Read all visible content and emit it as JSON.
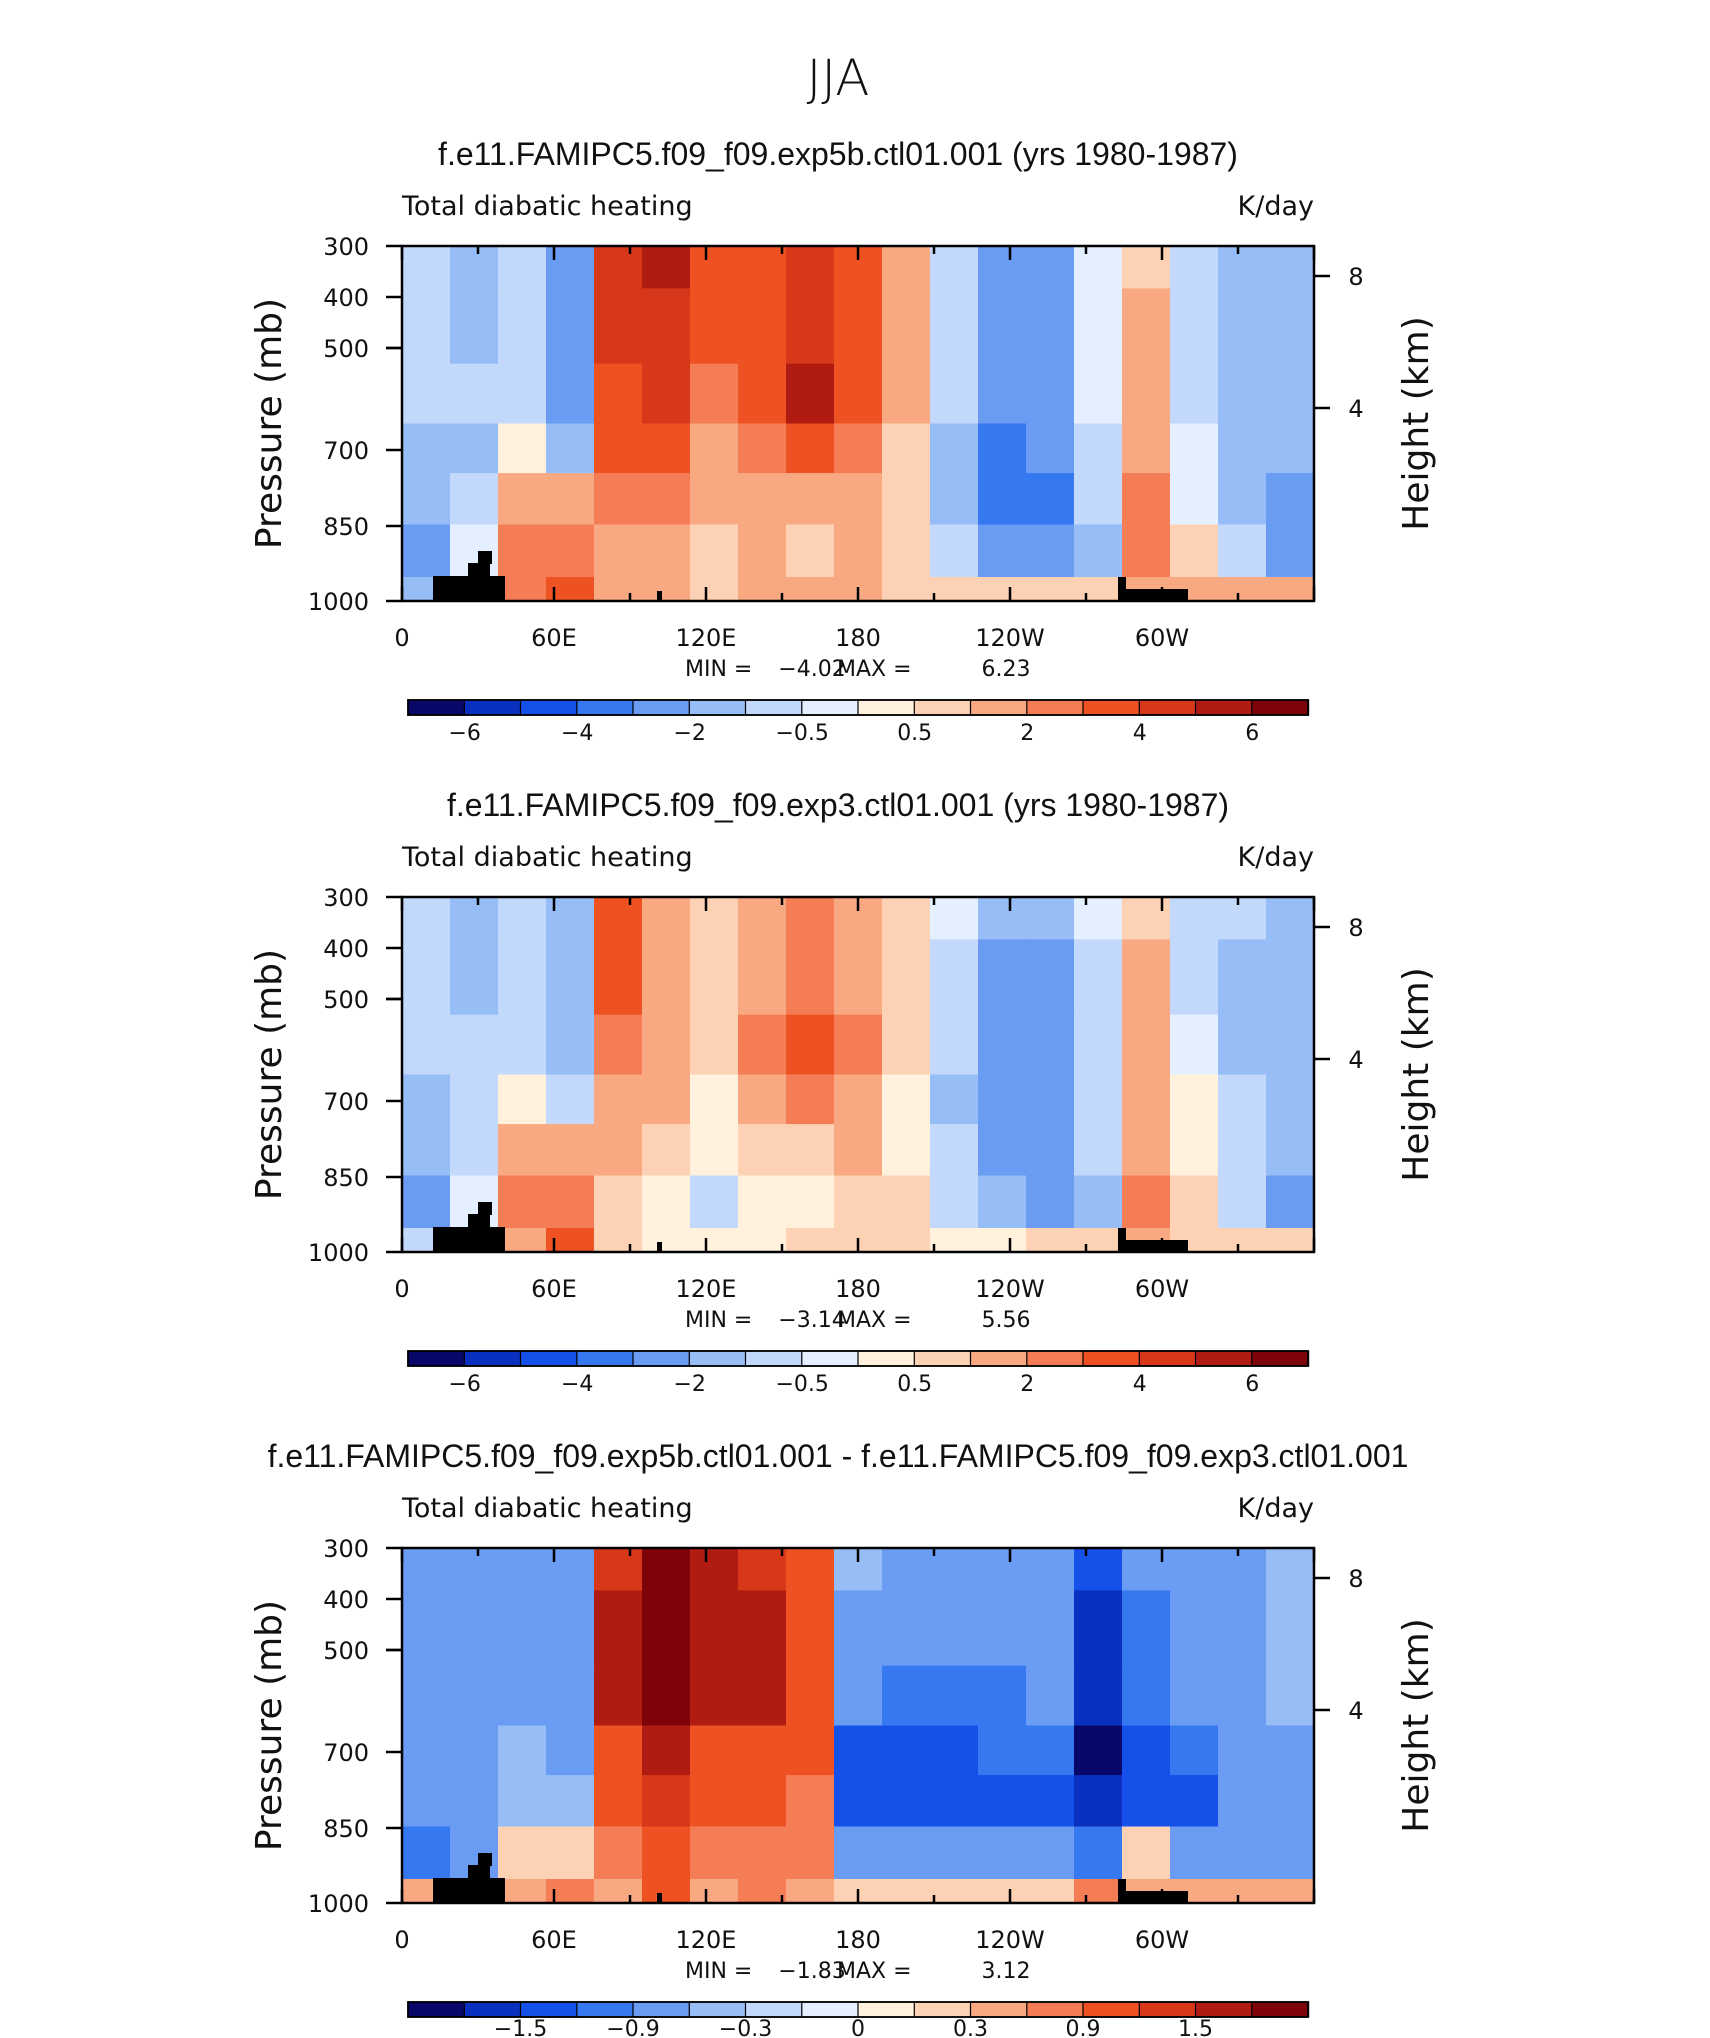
{
  "figure": {
    "main_title": "JJA"
  },
  "chart_data": [
    {
      "type": "heatmap",
      "title": "f.e11.FAMIPC5.f09_f09.exp5b.ctl01.001 (yrs 1980-1987)",
      "subtitle_left": "Total diabatic heating",
      "subtitle_right": "K/day",
      "ylabel": "Pressure (mb)",
      "ylabel_right": "Height (km)",
      "y_ticks": [
        "300",
        "400",
        "500",
        "500",
        "700",
        "850",
        "1000"
      ],
      "y_right_ticks": [
        "8",
        "4"
      ],
      "x_ticks": [
        "0",
        "60E",
        "120E",
        "180",
        "120W",
        "60W"
      ],
      "min_label": "MIN =",
      "min_value": "−4.02",
      "max_label": "MAX =",
      "max_value": "6.23",
      "colorbar_labels": [
        "−6",
        "−4",
        "−2",
        "−0.5",
        "0.5",
        "2",
        "4",
        "6"
      ],
      "colormap": "blue-white-red, 16 levels",
      "field": [
        [
          -0.8,
          -1.5,
          -0.6,
          -2.5,
          4.5,
          5.0,
          3.2,
          3.4,
          4.0,
          3.0,
          1.5,
          -0.6,
          -2.6,
          -2.5,
          -0.3,
          0.6,
          -1.0,
          -1.4,
          -1.7
        ],
        [
          -0.9,
          -1.4,
          -0.9,
          -2.4,
          4.2,
          4.6,
          3.0,
          3.5,
          4.5,
          3.2,
          1.3,
          -0.8,
          -2.8,
          -2.6,
          -0.4,
          1.0,
          -0.8,
          -1.6,
          -1.9
        ],
        [
          -0.9,
          -1.0,
          -0.9,
          -2.3,
          3.8,
          4.0,
          2.6,
          3.6,
          5.0,
          3.0,
          1.2,
          -1.0,
          -3.0,
          -2.8,
          -0.5,
          1.2,
          -0.6,
          -1.8,
          -2.0
        ],
        [
          -1.2,
          -1.2,
          0.3,
          -1.5,
          3.2,
          3.0,
          1.6,
          2.5,
          3.5,
          2.3,
          0.7,
          -1.2,
          -3.1,
          -3.0,
          -0.6,
          1.5,
          -0.4,
          -1.5,
          -2.0
        ],
        [
          -1.9,
          -0.9,
          1.5,
          1.0,
          2.6,
          2.2,
          1.2,
          1.5,
          1.6,
          1.5,
          0.6,
          -1.1,
          -3.3,
          -3.2,
          -0.9,
          2.0,
          -0.2,
          -1.3,
          -2.2
        ],
        [
          -2.8,
          -0.4,
          2.4,
          2.6,
          1.8,
          1.4,
          0.8,
          1.0,
          0.9,
          1.1,
          0.9,
          -0.8,
          -2.5,
          -3.0,
          -1.6,
          2.4,
          0.8,
          -1.0,
          -2.4
        ],
        [
          -1.8,
          0.6,
          2.0,
          3.5,
          1.4,
          1.1,
          0.9,
          1.1,
          1.2,
          1.3,
          0.9,
          0.5,
          0.6,
          0.8,
          0.9,
          1.6,
          1.4,
          1.0,
          1.1
        ]
      ]
    },
    {
      "type": "heatmap",
      "title": "f.e11.FAMIPC5.f09_f09.exp3.ctl01.001 (yrs 1980-1987)",
      "subtitle_left": "Total diabatic heating",
      "subtitle_right": "K/day",
      "ylabel": "Pressure (mb)",
      "ylabel_right": "Height (km)",
      "y_ticks": [
        "300",
        "400",
        "500",
        "500",
        "700",
        "850",
        "1000"
      ],
      "y_right_ticks": [
        "8",
        "4"
      ],
      "x_ticks": [
        "0",
        "60E",
        "120E",
        "180",
        "120W",
        "60W"
      ],
      "min_label": "MIN =",
      "min_value": "−3.14",
      "max_label": "MAX =",
      "max_value": "5.56",
      "colorbar_labels": [
        "−6",
        "−4",
        "−2",
        "−0.5",
        "0.5",
        "2",
        "4",
        "6"
      ],
      "colormap": "blue-white-red, 16 levels",
      "field": [
        [
          -0.8,
          -1.3,
          -0.8,
          -1.6,
          3.0,
          1.2,
          0.5,
          1.6,
          2.0,
          1.2,
          0.6,
          -0.5,
          -2.0,
          -2.0,
          -0.5,
          0.5,
          -0.8,
          -1.0,
          -1.6
        ],
        [
          -0.9,
          -1.2,
          -1.0,
          -1.8,
          3.0,
          1.6,
          0.5,
          1.8,
          2.8,
          1.6,
          0.5,
          -0.8,
          -2.2,
          -2.2,
          -0.6,
          1.0,
          -0.6,
          -1.2,
          -1.8
        ],
        [
          -0.9,
          -1.0,
          -1.0,
          -1.6,
          2.6,
          1.6,
          0.6,
          2.0,
          3.2,
          2.0,
          0.5,
          -1.0,
          -2.4,
          -2.4,
          -0.6,
          1.2,
          -0.4,
          -1.4,
          -1.9
        ],
        [
          -1.2,
          -0.8,
          0.0,
          -1.0,
          1.8,
          1.0,
          0.4,
          1.4,
          2.0,
          1.6,
          0.3,
          -1.2,
          -2.4,
          -2.2,
          -0.6,
          1.6,
          0.0,
          -1.0,
          -1.8
        ],
        [
          -1.8,
          -0.6,
          1.2,
          1.0,
          1.2,
          0.6,
          0.2,
          0.6,
          0.8,
          1.0,
          0.4,
          -1.0,
          -2.4,
          -2.4,
          -1.0,
          1.8,
          0.4,
          -0.8,
          -2.0
        ],
        [
          -2.4,
          -0.3,
          2.0,
          2.4,
          0.8,
          0.3,
          -0.8,
          0.3,
          0.4,
          0.6,
          0.6,
          -0.6,
          -1.6,
          -2.4,
          -1.8,
          2.2,
          0.8,
          -0.6,
          -2.2
        ],
        [
          -1.0,
          0.5,
          1.6,
          3.0,
          0.6,
          0.4,
          0.3,
          0.4,
          0.5,
          0.5,
          0.5,
          0.3,
          0.4,
          0.5,
          0.6,
          1.0,
          0.8,
          0.6,
          0.5
        ]
      ]
    },
    {
      "type": "heatmap",
      "title": "f.e11.FAMIPC5.f09_f09.exp5b.ctl01.001 - f.e11.FAMIPC5.f09_f09.exp3.ctl01.001",
      "subtitle_left": "Total diabatic heating",
      "subtitle_right": "K/day",
      "ylabel": "Pressure (mb)",
      "ylabel_right": "Height (km)",
      "y_ticks": [
        "300",
        "400",
        "500",
        "500",
        "700",
        "850",
        "1000"
      ],
      "y_right_ticks": [
        "8",
        "4"
      ],
      "x_ticks": [
        "0",
        "60E",
        "120E",
        "180",
        "120W",
        "60W"
      ],
      "min_label": "MIN =",
      "min_value": "−1.83",
      "max_label": "MAX =",
      "max_value": "3.12",
      "colorbar_labels": [
        "−1.5",
        "−0.9",
        "−0.3",
        "0",
        "0.3",
        "0.9",
        "1.5"
      ],
      "colormap": "blue-white-red, 16 levels",
      "field": [
        [
          -0.4,
          -0.6,
          -0.4,
          -0.6,
          1.6,
          2.2,
          1.8,
          1.6,
          1.2,
          -0.2,
          -0.5,
          -0.4,
          -0.5,
          -0.4,
          -1.2,
          -0.6,
          -0.5,
          -0.4,
          -0.3
        ],
        [
          -0.4,
          -0.6,
          -0.5,
          -0.6,
          1.8,
          2.4,
          2.0,
          1.8,
          1.3,
          -0.4,
          -0.6,
          -0.6,
          -0.6,
          -0.5,
          -1.4,
          -0.7,
          -0.6,
          -0.4,
          -0.3
        ],
        [
          -0.4,
          -0.5,
          -0.5,
          -0.6,
          1.8,
          2.2,
          1.8,
          1.8,
          1.4,
          -0.6,
          -0.8,
          -0.8,
          -0.7,
          -0.6,
          -1.5,
          -0.8,
          -0.6,
          -0.5,
          -0.3
        ],
        [
          -0.4,
          -0.5,
          -0.3,
          -0.5,
          1.4,
          1.8,
          1.4,
          1.4,
          1.2,
          -1.0,
          -1.0,
          -1.0,
          -0.8,
          -0.8,
          -1.6,
          -1.2,
          -0.8,
          -0.6,
          -0.4
        ],
        [
          -0.6,
          -0.4,
          -0.2,
          -0.3,
          1.2,
          1.6,
          1.2,
          1.2,
          1.0,
          -1.2,
          -1.2,
          -1.0,
          -1.0,
          -1.0,
          -1.4,
          -1.2,
          -1.0,
          -0.6,
          -0.6
        ],
        [
          -0.9,
          -0.4,
          0.3,
          0.4,
          1.0,
          1.4,
          1.0,
          1.0,
          0.9,
          -0.4,
          -0.5,
          -0.4,
          -0.4,
          -0.6,
          -0.9,
          0.4,
          -0.5,
          -0.4,
          -0.6
        ],
        [
          0.6,
          0.3,
          0.6,
          1.0,
          0.8,
          1.2,
          0.8,
          0.9,
          0.8,
          0.3,
          0.3,
          0.3,
          0.3,
          0.5,
          1.0,
          0.8,
          0.6,
          0.6,
          0.8
        ]
      ]
    }
  ]
}
